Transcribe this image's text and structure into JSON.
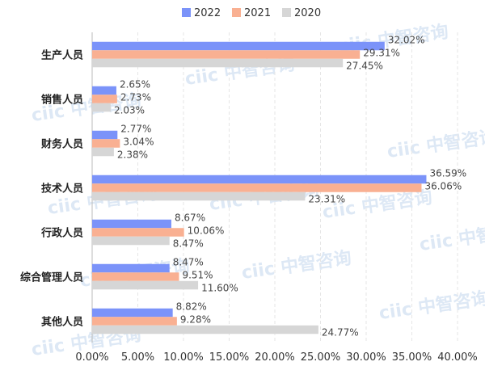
{
  "chart_data": {
    "type": "bar",
    "orientation": "horizontal",
    "categories": [
      "生产人员",
      "销售人员",
      "财务人员",
      "技术人员",
      "行政人员",
      "综合管理人员",
      "其他人员"
    ],
    "series": [
      {
        "name": "2022",
        "color": "#7b93f9",
        "values": [
          32.02,
          2.65,
          2.77,
          36.59,
          8.67,
          8.47,
          8.82
        ]
      },
      {
        "name": "2021",
        "color": "#f9b092",
        "values": [
          29.31,
          2.73,
          3.04,
          36.06,
          10.06,
          9.51,
          9.28
        ]
      },
      {
        "name": "2020",
        "color": "#d6d6d6",
        "values": [
          27.45,
          2.03,
          2.38,
          23.31,
          8.47,
          11.6,
          24.77
        ]
      }
    ],
    "xlim": [
      0,
      40
    ],
    "xticks": [
      "0.00%",
      "5.00%",
      "10.00%",
      "15.00%",
      "20.00%",
      "25.00%",
      "30.00%",
      "35.00%",
      "40.00%"
    ],
    "value_labels": [
      [
        "32.02%",
        "2.65%",
        "2.77%",
        "36.59%",
        "8.67%",
        "8.47%",
        "8.82%"
      ],
      [
        "29.31%",
        "2.73%",
        "3.04%",
        "36.06%",
        "10.06%",
        "9.51%",
        "9.28%"
      ],
      [
        "27.45%",
        "2.03%",
        "2.38%",
        "23.31%",
        "8.47%",
        "11.60%",
        "24.77%"
      ]
    ],
    "legend_position": "top-center",
    "grid": true
  },
  "watermark": "ciic 中智咨询"
}
